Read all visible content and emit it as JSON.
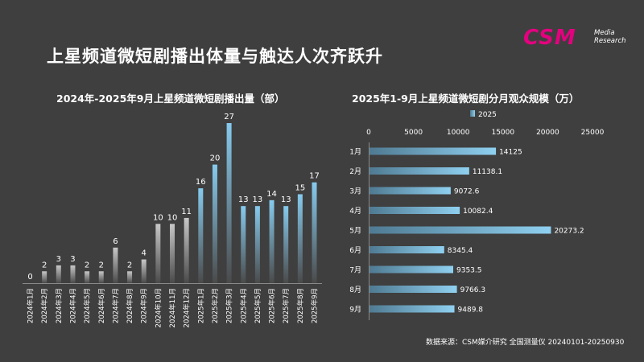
{
  "slide": {
    "title": "上星频道微短剧播出体量与触达人次齐跃升",
    "source": "数据来源：CSM媒介研究 全国测量仪 20240101-20250930"
  },
  "logo": {
    "brand": "CSM",
    "line1": "Media",
    "line2": "Research"
  },
  "colors": {
    "background": "#3f3f3f",
    "brand": "#e4007f",
    "bar_2024": "#b0b0b0",
    "bar_2025": "#7ec3e6"
  },
  "chart_data": [
    {
      "type": "bar",
      "title": "2024年-2025年9月上星频道微短剧播出量（部）",
      "categories": [
        "2024年1月",
        "2024年2月",
        "2024年3月",
        "2024年4月",
        "2024年5月",
        "2024年6月",
        "2024年7月",
        "2024年8月",
        "2024年9月",
        "2024年10月",
        "2024年11月",
        "2024年12月",
        "2025年1月",
        "2025年2月",
        "2025年3月",
        "2025年4月",
        "2025年5月",
        "2025年6月",
        "2025年7月",
        "2025年8月",
        "2025年9月"
      ],
      "values": [
        0,
        2,
        3,
        3,
        2,
        2,
        6,
        2,
        4,
        10,
        10,
        11,
        16,
        20,
        27,
        13,
        13,
        14,
        13,
        15,
        17
      ],
      "ylim": [
        0,
        27
      ],
      "xlabel": "",
      "ylabel": "",
      "grid": false
    },
    {
      "type": "bar",
      "orientation": "horizontal",
      "title": "2025年1-9月上星频道微短剧分月观众规模（万）",
      "legend": [
        "2025"
      ],
      "legend_position": "top",
      "categories": [
        "1月",
        "2月",
        "3月",
        "4月",
        "5月",
        "6月",
        "7月",
        "8月",
        "9月"
      ],
      "values": [
        14125,
        11138.1,
        9072.6,
        10082.4,
        20273.2,
        8345.4,
        9353.5,
        9766.3,
        9489.8
      ],
      "value_labels": [
        "14125",
        "11138.1",
        "9072.6",
        "10082.4",
        "20273.2",
        "8345.4",
        "9353.5",
        "9766.3",
        "9489.8"
      ],
      "xticks": [
        0,
        5000,
        10000,
        15000,
        20000,
        25000
      ],
      "xlim": [
        0,
        25000
      ],
      "grid": false
    }
  ]
}
